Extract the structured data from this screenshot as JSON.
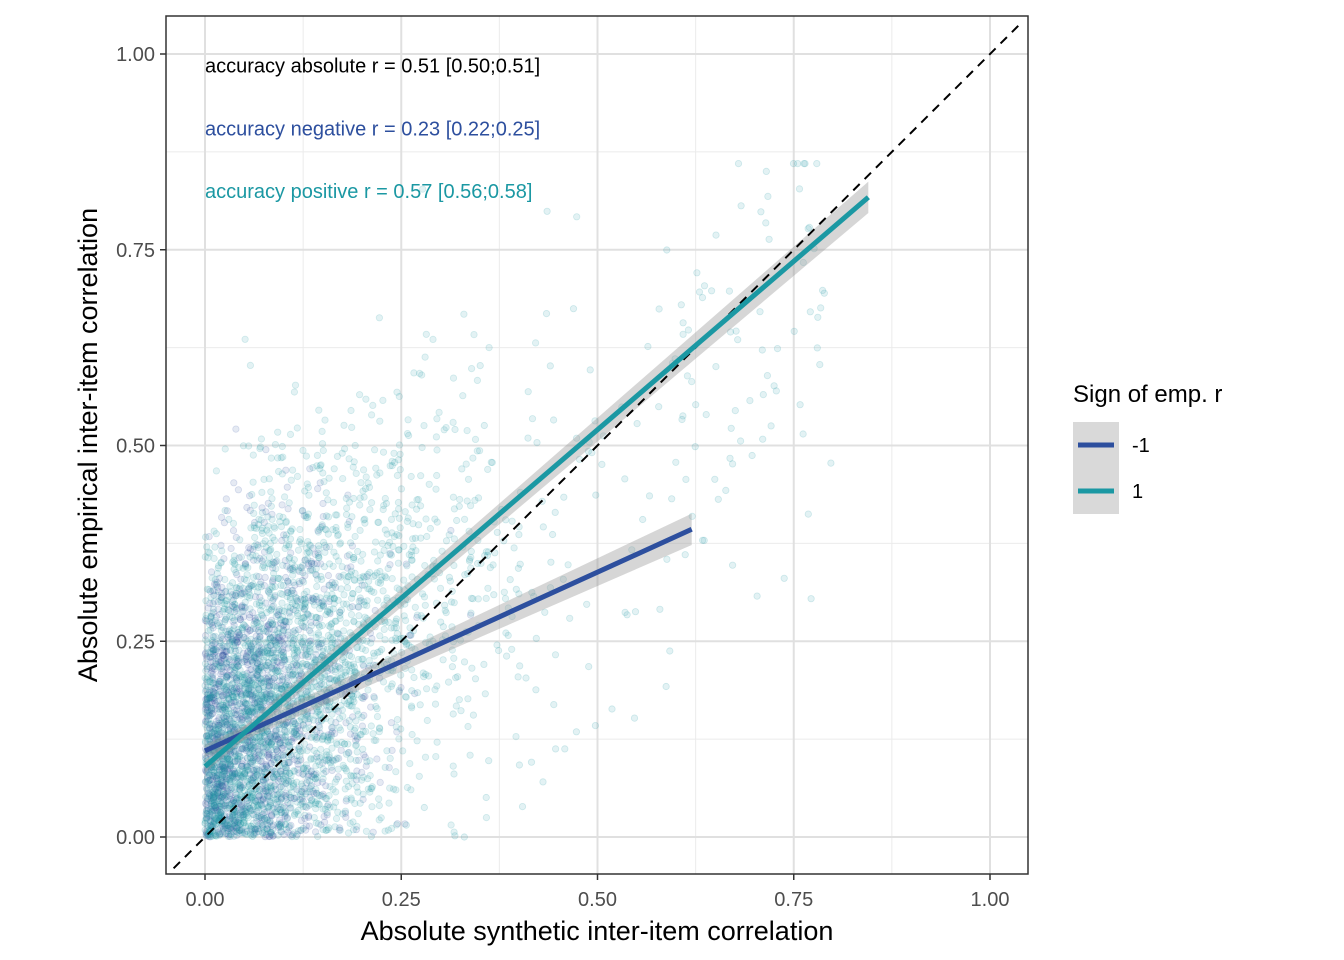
{
  "chart_data": {
    "type": "scatter",
    "title": "",
    "xlabel": "Absolute synthetic inter-item correlation",
    "ylabel": "Absolute empirical inter-item correlation",
    "xlim": [
      -0.04,
      1.04
    ],
    "ylim": [
      -0.05,
      1.05
    ],
    "xticks": [
      0,
      0.25,
      0.5,
      0.75,
      1
    ],
    "xtick_labels": [
      "0.00",
      "0.25",
      "0.50",
      "0.75",
      "1.00"
    ],
    "yticks": [
      0,
      0.25,
      0.5,
      0.75,
      1
    ],
    "ytick_labels": [
      "0.00",
      "0.25",
      "0.50",
      "0.75",
      "1.00"
    ],
    "grid": true,
    "reference_line": {
      "slope": 1,
      "intercept": 0,
      "style": "dashed",
      "color": "#000000"
    },
    "annotations": [
      {
        "text": "accuracy absolute r = 0.51 [0.50;0.51]",
        "x": 0.0,
        "y": 0.985,
        "color": "#000000"
      },
      {
        "text": "accuracy negative r = 0.23 [0.22;0.25]",
        "x": 0.0,
        "y": 0.905,
        "color": "#2d4f9e"
      },
      {
        "text": "accuracy positive r = 0.57 [0.56;0.58]",
        "x": 0.0,
        "y": 0.825,
        "color": "#1b98a3"
      }
    ],
    "legend": {
      "title": "Sign of emp. r",
      "placement": "right",
      "entries": [
        {
          "label": "-1",
          "color": "#2d4f9e"
        },
        {
          "label": "1",
          "color": "#1b98a3"
        }
      ]
    },
    "series": [
      {
        "name": "-1",
        "color": "#2d4f9e",
        "point_opacity": 0.12,
        "x_max": 0.62,
        "y_max": 0.6,
        "fit": {
          "x": [
            0.0,
            0.62
          ],
          "y": [
            0.11,
            0.393
          ]
        }
      },
      {
        "name": "1",
        "color": "#1b98a3",
        "point_opacity": 0.12,
        "x_max": 0.85,
        "y_max": 0.86,
        "fit": {
          "x": [
            0.0,
            0.845
          ],
          "y": [
            0.09,
            0.817
          ]
        }
      }
    ]
  }
}
